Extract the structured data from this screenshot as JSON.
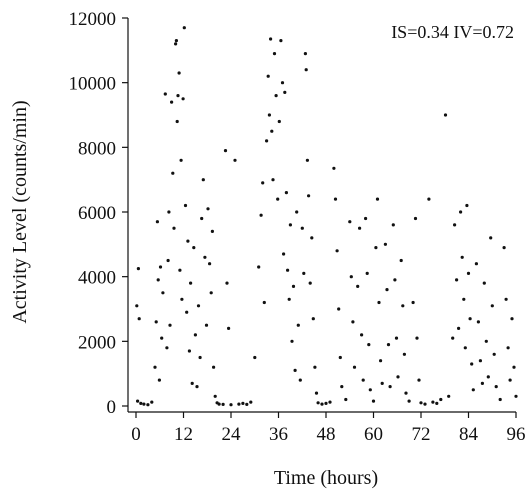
{
  "chart_data": {
    "type": "scatter",
    "title": "",
    "xlabel": "Time (hours)",
    "ylabel": "Activity Level (counts/min)",
    "xlim": [
      0,
      96
    ],
    "ylim": [
      0,
      12000
    ],
    "x_ticks": [
      0,
      12,
      24,
      36,
      48,
      60,
      72,
      84,
      96
    ],
    "y_ticks": [
      0,
      2000,
      4000,
      6000,
      8000,
      10000,
      12000
    ],
    "grid": false,
    "legend": "none",
    "annotation": "IS=0.34  IV=0.72",
    "series": [
      {
        "marker_color": "#111111",
        "points": [
          [
            0.2,
            3100
          ],
          [
            0.4,
            150
          ],
          [
            0.6,
            4250
          ],
          [
            0.8,
            2700
          ],
          [
            1.2,
            80
          ],
          [
            2.0,
            60
          ],
          [
            3.0,
            40
          ],
          [
            4.0,
            120
          ],
          [
            4.8,
            1200
          ],
          [
            5.1,
            2600
          ],
          [
            5.4,
            5700
          ],
          [
            5.6,
            3900
          ],
          [
            5.9,
            800
          ],
          [
            6.2,
            4300
          ],
          [
            6.5,
            2100
          ],
          [
            6.8,
            3500
          ],
          [
            7.4,
            9650
          ],
          [
            7.8,
            1800
          ],
          [
            8.1,
            4500
          ],
          [
            8.3,
            6000
          ],
          [
            8.6,
            2500
          ],
          [
            9.0,
            9400
          ],
          [
            9.3,
            7200
          ],
          [
            9.6,
            5500
          ],
          [
            10.0,
            11200
          ],
          [
            10.2,
            11300
          ],
          [
            10.4,
            8800
          ],
          [
            10.6,
            9600
          ],
          [
            10.9,
            10300
          ],
          [
            11.1,
            4200
          ],
          [
            11.4,
            7600
          ],
          [
            11.6,
            3300
          ],
          [
            11.9,
            9500
          ],
          [
            12.2,
            11700
          ],
          [
            12.5,
            6200
          ],
          [
            12.8,
            2900
          ],
          [
            13.1,
            5100
          ],
          [
            13.5,
            1700
          ],
          [
            13.8,
            3800
          ],
          [
            14.2,
            700
          ],
          [
            14.6,
            4900
          ],
          [
            15.0,
            2200
          ],
          [
            15.4,
            600
          ],
          [
            15.8,
            3100
          ],
          [
            16.2,
            1500
          ],
          [
            16.6,
            5800
          ],
          [
            17.0,
            7000
          ],
          [
            17.4,
            4600
          ],
          [
            17.8,
            2500
          ],
          [
            18.2,
            6100
          ],
          [
            18.6,
            4400
          ],
          [
            19.0,
            3500
          ],
          [
            19.3,
            5400
          ],
          [
            19.6,
            1200
          ],
          [
            20.0,
            300
          ],
          [
            20.5,
            100
          ],
          [
            21.0,
            60
          ],
          [
            22.0,
            50
          ],
          [
            22.6,
            7900
          ],
          [
            23.0,
            3800
          ],
          [
            23.4,
            2400
          ],
          [
            24.0,
            40
          ],
          [
            25.0,
            7600
          ],
          [
            26.0,
            60
          ],
          [
            27.0,
            80
          ],
          [
            28.0,
            50
          ],
          [
            29.0,
            120
          ],
          [
            30.0,
            1500
          ],
          [
            31.0,
            4300
          ],
          [
            31.6,
            5900
          ],
          [
            32.0,
            6900
          ],
          [
            32.4,
            3200
          ],
          [
            33.0,
            8200
          ],
          [
            33.4,
            10200
          ],
          [
            33.7,
            9000
          ],
          [
            34.0,
            11350
          ],
          [
            34.3,
            8500
          ],
          [
            34.6,
            7000
          ],
          [
            35.0,
            10900
          ],
          [
            35.4,
            9600
          ],
          [
            35.8,
            6400
          ],
          [
            36.2,
            8800
          ],
          [
            36.6,
            11300
          ],
          [
            37.0,
            10000
          ],
          [
            37.3,
            4700
          ],
          [
            37.6,
            9700
          ],
          [
            38.0,
            6600
          ],
          [
            38.3,
            4200
          ],
          [
            38.7,
            3300
          ],
          [
            39.0,
            5600
          ],
          [
            39.4,
            2000
          ],
          [
            39.8,
            3700
          ],
          [
            40.2,
            1100
          ],
          [
            40.6,
            6000
          ],
          [
            41.0,
            2500
          ],
          [
            41.5,
            800
          ],
          [
            42.0,
            5500
          ],
          [
            42.4,
            4100
          ],
          [
            42.8,
            10900
          ],
          [
            43.0,
            10400
          ],
          [
            43.3,
            7600
          ],
          [
            43.6,
            6500
          ],
          [
            44.0,
            3800
          ],
          [
            44.4,
            5200
          ],
          [
            44.8,
            2700
          ],
          [
            45.2,
            1200
          ],
          [
            45.6,
            400
          ],
          [
            46.0,
            100
          ],
          [
            47.0,
            60
          ],
          [
            48.0,
            80
          ],
          [
            49.0,
            120
          ],
          [
            50.0,
            7350
          ],
          [
            50.4,
            6400
          ],
          [
            50.8,
            4800
          ],
          [
            51.2,
            3000
          ],
          [
            51.6,
            1500
          ],
          [
            52.0,
            600
          ],
          [
            53.0,
            200
          ],
          [
            54.0,
            5700
          ],
          [
            54.4,
            4000
          ],
          [
            54.8,
            2600
          ],
          [
            55.2,
            1200
          ],
          [
            56.0,
            3700
          ],
          [
            56.5,
            5500
          ],
          [
            57.0,
            2200
          ],
          [
            57.4,
            800
          ],
          [
            58.0,
            5800
          ],
          [
            58.4,
            4100
          ],
          [
            58.8,
            1900
          ],
          [
            59.2,
            500
          ],
          [
            60.0,
            150
          ],
          [
            60.6,
            4900
          ],
          [
            61.0,
            6400
          ],
          [
            61.4,
            3200
          ],
          [
            61.8,
            1400
          ],
          [
            62.2,
            700
          ],
          [
            63.0,
            5000
          ],
          [
            63.4,
            3600
          ],
          [
            63.8,
            1900
          ],
          [
            64.2,
            600
          ],
          [
            65.0,
            5600
          ],
          [
            65.4,
            3900
          ],
          [
            65.8,
            2100
          ],
          [
            66.2,
            900
          ],
          [
            67.0,
            4500
          ],
          [
            67.4,
            3100
          ],
          [
            67.8,
            1600
          ],
          [
            68.2,
            400
          ],
          [
            69.0,
            150
          ],
          [
            70.0,
            3200
          ],
          [
            70.6,
            5800
          ],
          [
            71.0,
            2100
          ],
          [
            71.5,
            800
          ],
          [
            72.0,
            100
          ],
          [
            73.0,
            60
          ],
          [
            74.0,
            6400
          ],
          [
            75.0,
            120
          ],
          [
            76.0,
            80
          ],
          [
            77.0,
            200
          ],
          [
            78.2,
            9000
          ],
          [
            79.0,
            300
          ],
          [
            80.0,
            2100
          ],
          [
            80.5,
            5600
          ],
          [
            81.0,
            3900
          ],
          [
            81.5,
            2400
          ],
          [
            82.0,
            6000
          ],
          [
            82.4,
            4600
          ],
          [
            82.8,
            3300
          ],
          [
            83.2,
            1800
          ],
          [
            83.6,
            6200
          ],
          [
            84.0,
            4100
          ],
          [
            84.4,
            2700
          ],
          [
            84.8,
            1300
          ],
          [
            85.2,
            500
          ],
          [
            86.0,
            4400
          ],
          [
            86.5,
            2600
          ],
          [
            87.0,
            1400
          ],
          [
            87.5,
            700
          ],
          [
            88.0,
            3800
          ],
          [
            88.5,
            2000
          ],
          [
            89.0,
            900
          ],
          [
            89.6,
            5200
          ],
          [
            90.0,
            3100
          ],
          [
            90.5,
            1600
          ],
          [
            91.0,
            600
          ],
          [
            92.0,
            200
          ],
          [
            93.0,
            4900
          ],
          [
            93.5,
            3300
          ],
          [
            94.0,
            1800
          ],
          [
            94.5,
            800
          ],
          [
            95.0,
            2700
          ],
          [
            95.5,
            1200
          ],
          [
            96.0,
            300
          ]
        ]
      }
    ]
  }
}
